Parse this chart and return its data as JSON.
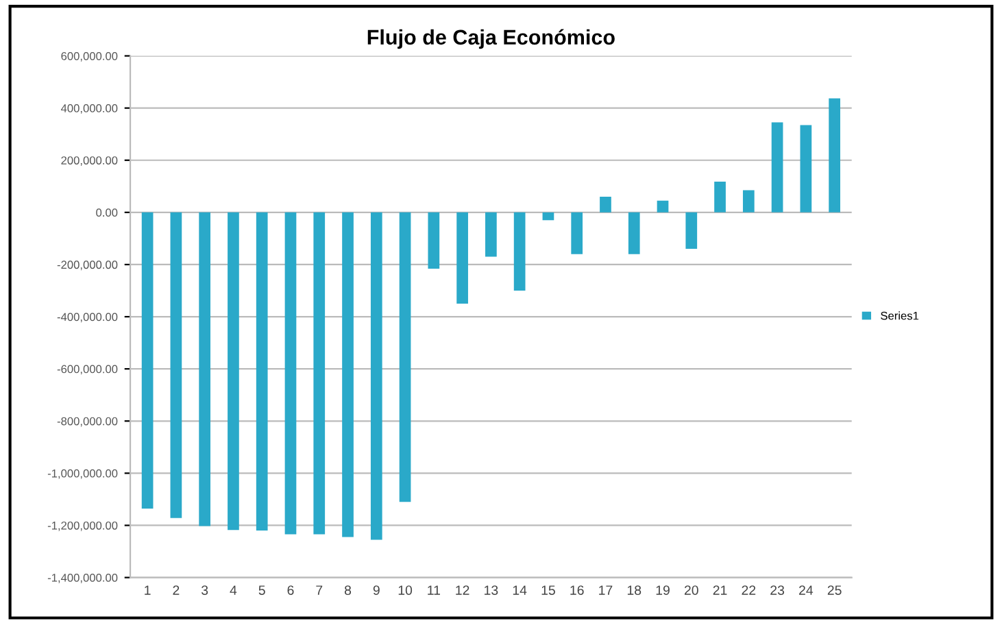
{
  "chart_data": {
    "type": "bar",
    "title": "Flujo de Caja Económico",
    "categories": [
      "1",
      "2",
      "3",
      "4",
      "5",
      "6",
      "7",
      "8",
      "9",
      "10",
      "11",
      "12",
      "13",
      "14",
      "15",
      "16",
      "17",
      "18",
      "19",
      "20",
      "21",
      "22",
      "23",
      "24",
      "25"
    ],
    "series": [
      {
        "name": "Series1",
        "color": "#2aa9c9",
        "values": [
          -1136000,
          -1172000,
          -1203000,
          -1218000,
          -1220000,
          -1234000,
          -1234000,
          -1245000,
          -1255000,
          -1110000,
          -216000,
          -350000,
          -170000,
          -300000,
          -30000,
          -160000,
          60000,
          -160000,
          45000,
          -140000,
          118000,
          85000,
          345000,
          335000,
          437000
        ]
      }
    ],
    "ylim": [
      -1400000,
      600000
    ],
    "yticks": [
      {
        "value": -1400000,
        "label": "-1,400,000.00"
      },
      {
        "value": -1200000,
        "label": "-1,200,000.00"
      },
      {
        "value": -1000000,
        "label": "-1,000,000.00"
      },
      {
        "value": -800000,
        "label": "-800,000.00"
      },
      {
        "value": -600000,
        "label": "-600,000.00"
      },
      {
        "value": -400000,
        "label": "-400,000.00"
      },
      {
        "value": -200000,
        "label": "-200,000.00"
      },
      {
        "value": 0,
        "label": "0.00"
      },
      {
        "value": 200000,
        "label": "200,000.00"
      },
      {
        "value": 400000,
        "label": "400,000.00"
      },
      {
        "value": 600000,
        "label": "600,000.00"
      }
    ],
    "grid": "y",
    "legend": "right"
  }
}
